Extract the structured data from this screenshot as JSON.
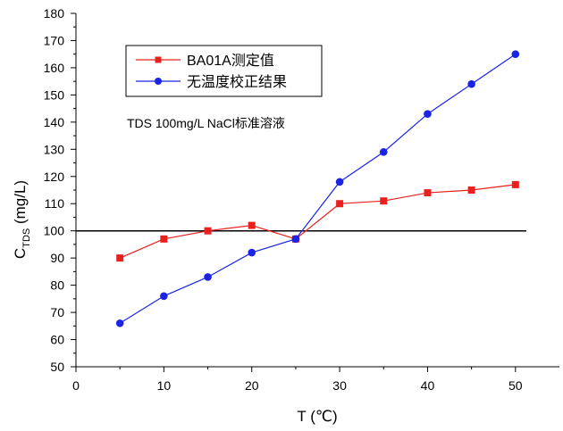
{
  "chart_data": {
    "type": "line",
    "title": "",
    "xlabel": "T (℃)",
    "ylabel": {
      "main": "C",
      "sub": "TDS",
      "rest": " (mg/L)"
    },
    "xlim": [
      0,
      55
    ],
    "ylim": [
      50,
      180
    ],
    "xticks": [
      0,
      10,
      20,
      30,
      40,
      50
    ],
    "yticks": [
      50,
      60,
      70,
      80,
      90,
      100,
      110,
      120,
      130,
      140,
      150,
      160,
      170,
      180
    ],
    "x": [
      5,
      10,
      15,
      20,
      25,
      30,
      35,
      40,
      45,
      50
    ],
    "series": [
      {
        "name": "BA01A测定值",
        "color": "#e8201e",
        "marker": "square",
        "values": [
          90,
          97,
          100,
          102,
          97,
          110,
          111,
          114,
          115,
          117
        ]
      },
      {
        "name": "无温度校正结果",
        "color": "#1b24e6",
        "marker": "circle",
        "values": [
          66,
          76,
          83,
          92,
          97,
          118,
          129,
          143,
          154,
          165
        ]
      }
    ],
    "reference_line": {
      "y": 100,
      "color": "#000000"
    },
    "annotation": "TDS 100mg/L NaCl标准溶液",
    "legend_position": "top-left",
    "grid": false
  }
}
